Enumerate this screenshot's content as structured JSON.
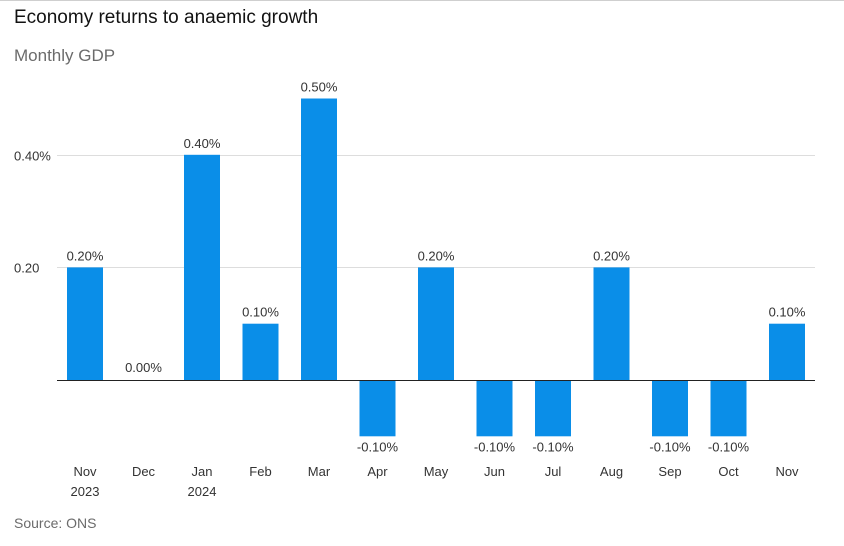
{
  "header": {
    "title": "Economy returns to anaemic growth",
    "subtitle": "Monthly GDP"
  },
  "footer": {
    "source": "Source: ONS"
  },
  "colors": {
    "bar": "#0a8ee8",
    "grid": "#dddddd",
    "zero_line": "#222222"
  },
  "chart_data": {
    "type": "bar",
    "title": "Economy returns to anaemic growth",
    "subtitle": "Monthly GDP",
    "xlabel": "",
    "ylabel": "",
    "categories": [
      [
        "Nov",
        "2023"
      ],
      [
        "Dec"
      ],
      [
        "Jan",
        "2024"
      ],
      [
        "Feb"
      ],
      [
        "Mar"
      ],
      [
        "Apr"
      ],
      [
        "May"
      ],
      [
        "Jun"
      ],
      [
        "Jul"
      ],
      [
        "Aug"
      ],
      [
        "Sep"
      ],
      [
        "Oct"
      ],
      [
        "Nov"
      ]
    ],
    "values": [
      0.2,
      0.0,
      0.4,
      0.1,
      0.5,
      -0.1,
      0.2,
      -0.1,
      -0.1,
      0.2,
      -0.1,
      -0.1,
      0.1
    ],
    "data_labels": [
      "0.20%",
      "0.00%",
      "0.40%",
      "0.10%",
      "0.50%",
      "-0.10%",
      "0.20%",
      "-0.10%",
      "-0.10%",
      "0.20%",
      "-0.10%",
      "-0.10%",
      "0.10%"
    ],
    "yticks": [
      {
        "value": 0.4,
        "label": "0.40%"
      },
      {
        "value": 0.2,
        "label": "0.20"
      }
    ],
    "ylim": [
      -0.1,
      0.5
    ],
    "grid": true,
    "legend": "none"
  }
}
